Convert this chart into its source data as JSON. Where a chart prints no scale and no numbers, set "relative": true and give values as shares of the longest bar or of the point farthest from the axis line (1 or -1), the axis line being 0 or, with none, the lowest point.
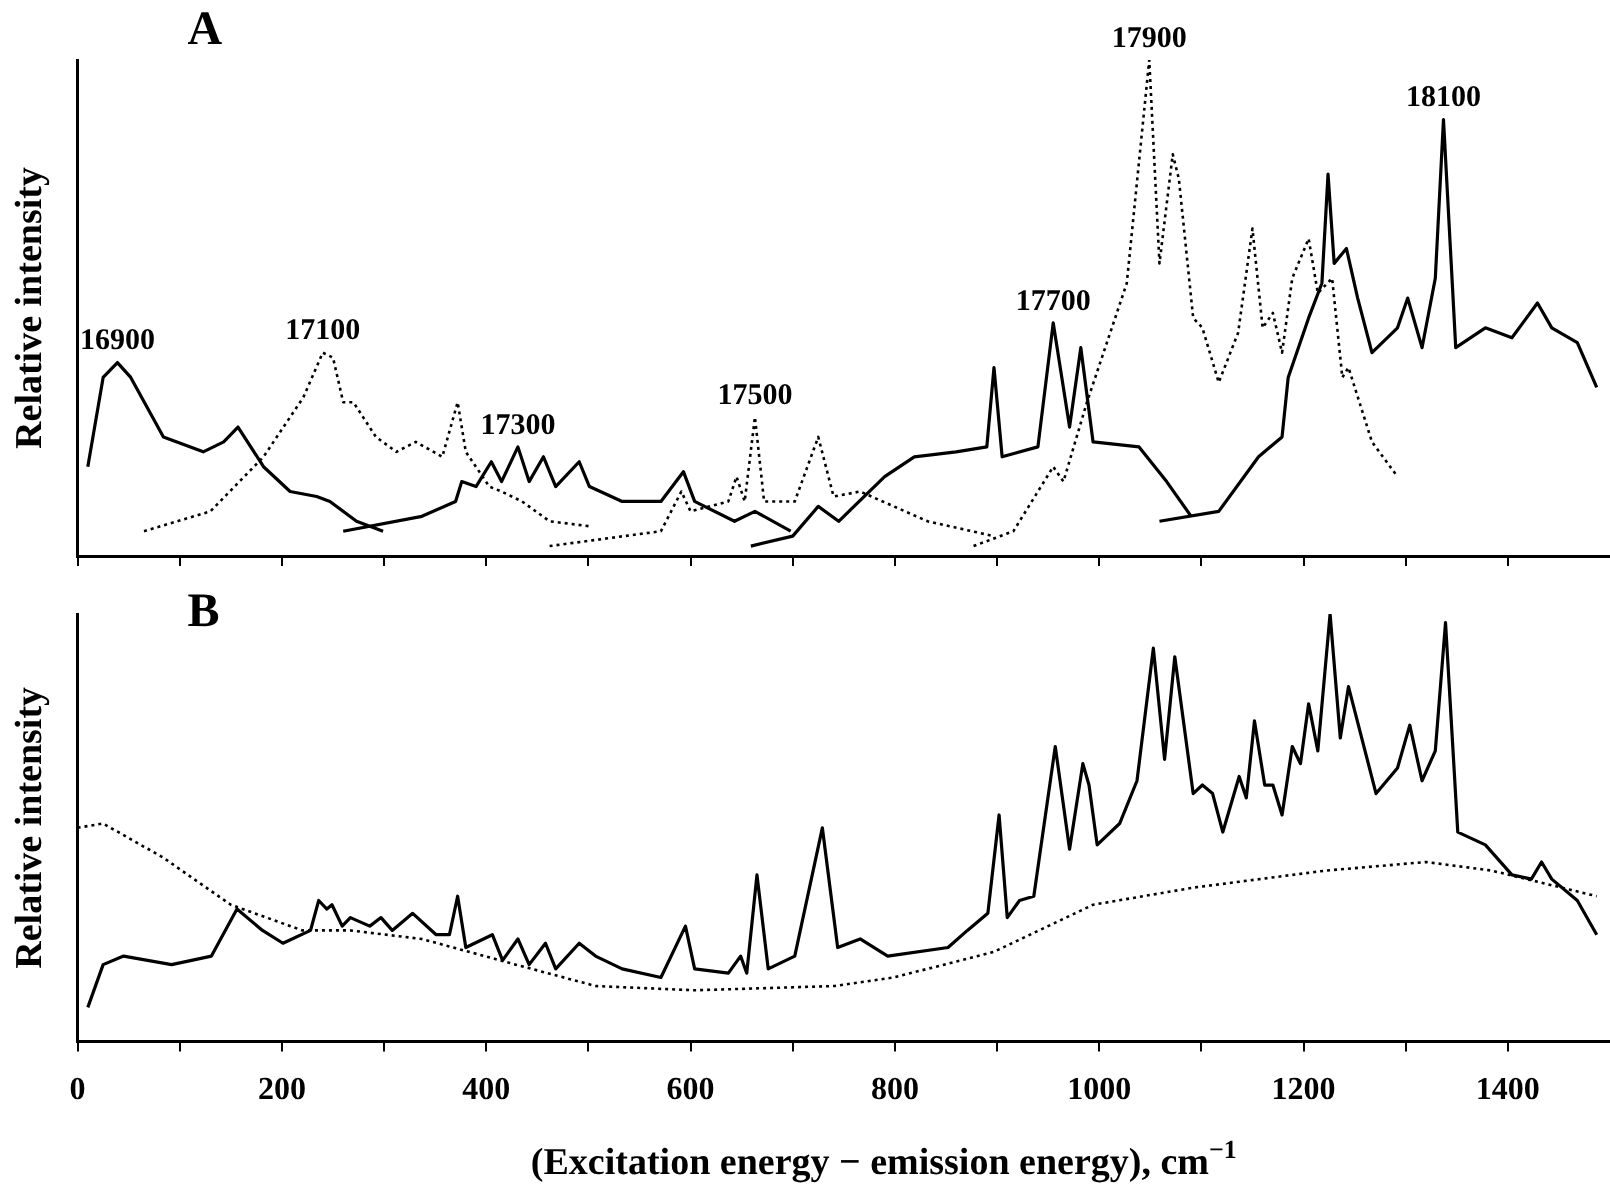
{
  "chart_data": [
    {
      "type": "line",
      "title": "A",
      "ylabel": "Relative intensity",
      "relative": true,
      "xlim": [
        0,
        1500
      ],
      "xticks": [
        {
          "value": 0,
          "label": null
        },
        {
          "value": 100,
          "label": null
        },
        {
          "value": 200,
          "label": null
        },
        {
          "value": 300,
          "label": null
        },
        {
          "value": 400,
          "label": null
        },
        {
          "value": 500,
          "label": null
        },
        {
          "value": 600,
          "label": null
        },
        {
          "value": 700,
          "label": null
        },
        {
          "value": 800,
          "label": null
        },
        {
          "value": 900,
          "label": null
        },
        {
          "value": 1000,
          "label": null
        },
        {
          "value": 1100,
          "label": null
        },
        {
          "value": 1200,
          "label": null
        },
        {
          "value": 1300,
          "label": null
        },
        {
          "value": 1400,
          "label": null
        }
      ],
      "tick_labels": false,
      "grid": false,
      "legend": false,
      "marker": "none",
      "series": [
        {
          "name": "16900",
          "color": "#000000",
          "line_style": "solid",
          "x": [
            10,
            25,
            39,
            52,
            84,
            123,
            143,
            157,
            182,
            208,
            234,
            247,
            273,
            299
          ],
          "values": [
            0.18,
            0.36,
            0.39,
            0.36,
            0.24,
            0.21,
            0.23,
            0.26,
            0.18,
            0.13,
            0.12,
            0.11,
            0.07,
            0.05
          ]
        },
        {
          "name": "17100",
          "color": "#000000",
          "line_style": "dotted",
          "x": [
            65,
            130,
            182,
            221,
            240,
            250,
            260,
            270,
            292,
            312,
            331,
            357,
            372,
            380,
            403,
            415,
            435,
            462,
            501
          ],
          "values": [
            0.05,
            0.09,
            0.2,
            0.32,
            0.41,
            0.4,
            0.31,
            0.31,
            0.24,
            0.21,
            0.23,
            0.2,
            0.31,
            0.21,
            0.14,
            0.13,
            0.11,
            0.07,
            0.06
          ]
        },
        {
          "name": "17300",
          "color": "#000000",
          "line_style": "solid",
          "x": [
            260,
            337,
            370,
            376,
            390,
            405,
            415,
            431,
            442,
            456,
            468,
            491,
            501,
            533,
            571,
            593,
            604,
            643,
            663,
            698
          ],
          "values": [
            0.05,
            0.08,
            0.11,
            0.15,
            0.14,
            0.19,
            0.15,
            0.22,
            0.15,
            0.2,
            0.14,
            0.19,
            0.14,
            0.11,
            0.11,
            0.17,
            0.11,
            0.07,
            0.09,
            0.05
          ]
        },
        {
          "name": "17500",
          "color": "#000000",
          "line_style": "dotted",
          "x": [
            462,
            571,
            591,
            600,
            637,
            645,
            653,
            663,
            672,
            702,
            725,
            740,
            766,
            832,
            897
          ],
          "values": [
            0.02,
            0.05,
            0.13,
            0.09,
            0.11,
            0.16,
            0.11,
            0.28,
            0.11,
            0.11,
            0.24,
            0.12,
            0.13,
            0.07,
            0.04
          ]
        },
        {
          "name": "17700",
          "color": "#000000",
          "line_style": "solid",
          "x": [
            659,
            700,
            725,
            745,
            790,
            819,
            860,
            890,
            897,
            905,
            940,
            955,
            971,
            982,
            994,
            1039,
            1066,
            1090
          ],
          "values": [
            0.02,
            0.04,
            0.1,
            0.07,
            0.16,
            0.2,
            0.21,
            0.22,
            0.38,
            0.2,
            0.22,
            0.47,
            0.26,
            0.42,
            0.23,
            0.22,
            0.15,
            0.08
          ]
        },
        {
          "name": "17900",
          "color": "#000000",
          "line_style": "dotted",
          "x": [
            877,
            916,
            955,
            965,
            988,
            1027,
            1049,
            1059,
            1072,
            1078,
            1092,
            1101,
            1117,
            1136,
            1150,
            1160,
            1170,
            1179,
            1189,
            1205,
            1214,
            1228,
            1238,
            1244,
            1267,
            1292
          ],
          "values": [
            0.02,
            0.05,
            0.18,
            0.15,
            0.31,
            0.55,
            1,
            0.59,
            0.81,
            0.76,
            0.48,
            0.46,
            0.35,
            0.45,
            0.66,
            0.46,
            0.49,
            0.41,
            0.56,
            0.64,
            0.53,
            0.56,
            0.36,
            0.38,
            0.23,
            0.16
          ]
        },
        {
          "name": "18100",
          "color": "#000000",
          "line_style": "solid",
          "x": [
            1059,
            1117,
            1156,
            1179,
            1185,
            1205,
            1218,
            1224,
            1230,
            1242,
            1253,
            1267,
            1292,
            1302,
            1316,
            1329,
            1337,
            1349,
            1378,
            1404,
            1429,
            1443,
            1468,
            1487
          ],
          "values": [
            0.07,
            0.09,
            0.2,
            0.24,
            0.36,
            0.48,
            0.55,
            0.77,
            0.59,
            0.62,
            0.52,
            0.41,
            0.46,
            0.52,
            0.42,
            0.56,
            0.88,
            0.42,
            0.46,
            0.44,
            0.51,
            0.46,
            0.43,
            0.34
          ]
        }
      ]
    },
    {
      "type": "line",
      "title": "B",
      "xlabel": "(Excitation energy − emission energy), cm$^{−1}$",
      "ylabel": "Relative intensity",
      "relative": true,
      "xlim": [
        0,
        1500
      ],
      "xticks": [
        0,
        {
          "value": 100,
          "label": null
        },
        200,
        {
          "value": 300,
          "label": null
        },
        400,
        {
          "value": 500,
          "label": null
        },
        600,
        {
          "value": 700,
          "label": null
        },
        800,
        {
          "value": 900,
          "label": null
        },
        1000,
        {
          "value": 1100,
          "label": null
        },
        1200,
        {
          "value": 1300,
          "label": null
        },
        1400
      ],
      "tick_labels": "x",
      "grid": false,
      "legend": false,
      "marker": "none",
      "series": [
        {
          "color": "#000000",
          "line_style": "solid",
          "x": [
            10,
            25,
            45,
            92,
            131,
            156,
            181,
            201,
            228,
            236,
            244,
            249,
            259,
            267,
            286,
            297,
            308,
            328,
            351,
            364,
            372,
            380,
            406,
            416,
            431,
            442,
            458,
            468,
            491,
            507,
            533,
            571,
            595,
            604,
            637,
            649,
            655,
            665,
            676,
            702,
            729,
            744,
            766,
            793,
            852,
            871,
            891,
            902,
            910,
            922,
            936,
            957,
            971,
            984,
            990,
            998,
            1020,
            1037,
            1053,
            1064,
            1074,
            1092,
            1101,
            1111,
            1121,
            1137,
            1144,
            1152,
            1162,
            1170,
            1179,
            1189,
            1197,
            1205,
            1214,
            1226,
            1236,
            1244,
            1271,
            1292,
            1304,
            1316,
            1329,
            1339,
            1351,
            1378,
            1404,
            1423,
            1433,
            1443,
            1468,
            1487
          ],
          "values": [
            0.08,
            0.18,
            0.2,
            0.18,
            0.2,
            0.31,
            0.26,
            0.23,
            0.26,
            0.33,
            0.31,
            0.32,
            0.27,
            0.29,
            0.27,
            0.29,
            0.26,
            0.3,
            0.25,
            0.25,
            0.34,
            0.22,
            0.25,
            0.19,
            0.24,
            0.18,
            0.23,
            0.17,
            0.23,
            0.2,
            0.17,
            0.15,
            0.27,
            0.17,
            0.16,
            0.2,
            0.16,
            0.39,
            0.17,
            0.2,
            0.5,
            0.22,
            0.24,
            0.2,
            0.22,
            0.26,
            0.3,
            0.53,
            0.29,
            0.33,
            0.34,
            0.69,
            0.45,
            0.65,
            0.6,
            0.46,
            0.51,
            0.61,
            0.92,
            0.66,
            0.9,
            0.58,
            0.6,
            0.58,
            0.49,
            0.62,
            0.57,
            0.75,
            0.6,
            0.6,
            0.53,
            0.69,
            0.65,
            0.79,
            0.68,
            1,
            0.71,
            0.83,
            0.58,
            0.64,
            0.74,
            0.61,
            0.68,
            0.98,
            0.49,
            0.46,
            0.39,
            0.38,
            0.42,
            0.38,
            0.33,
            0.25
          ]
        },
        {
          "color": "#000000",
          "line_style": "dotted",
          "x": [
            0,
            25,
            84,
            150,
            220,
            267,
            337,
            429,
            507,
            604,
            741,
            799,
            897,
            994,
            1092,
            1222,
            1320,
            1384,
            1487
          ],
          "values": [
            0.5,
            0.51,
            0.43,
            0.32,
            0.26,
            0.26,
            0.24,
            0.18,
            0.13,
            0.12,
            0.13,
            0.15,
            0.21,
            0.32,
            0.36,
            0.4,
            0.42,
            0.4,
            0.34
          ]
        }
      ]
    }
  ]
}
